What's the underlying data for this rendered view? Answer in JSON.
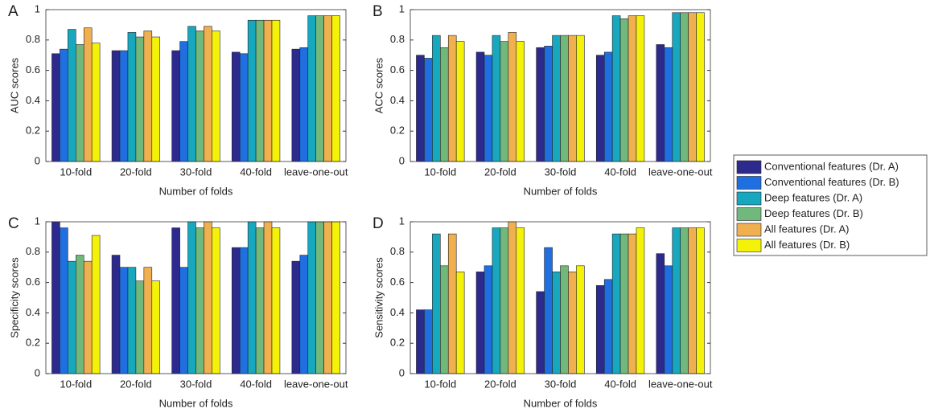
{
  "chart_data": [
    {
      "type": "bar",
      "label": "A",
      "xlabel": "Number of folds",
      "ylabel": "AUC scores",
      "categories": [
        "10-fold",
        "20-fold",
        "30-fold",
        "40-fold",
        "leave-one-out"
      ],
      "ylim": [
        0,
        1
      ],
      "yticks": [
        0,
        0.2,
        0.4,
        0.6,
        0.8,
        1
      ],
      "series": [
        {
          "name": "Conventional features (Dr. A)",
          "color": "#2d2a8e",
          "values": [
            0.71,
            0.73,
            0.73,
            0.72,
            0.74
          ]
        },
        {
          "name": "Conventional features (Dr. B)",
          "color": "#1f6fe0",
          "values": [
            0.74,
            0.73,
            0.79,
            0.71,
            0.75
          ]
        },
        {
          "name": "Deep features (Dr. A)",
          "color": "#17a8c0",
          "values": [
            0.87,
            0.85,
            0.89,
            0.93,
            0.96
          ]
        },
        {
          "name": "Deep features (Dr. B)",
          "color": "#70b87c",
          "values": [
            0.77,
            0.82,
            0.86,
            0.93,
            0.96
          ]
        },
        {
          "name": "All features (Dr. A)",
          "color": "#f0b050",
          "values": [
            0.88,
            0.86,
            0.89,
            0.93,
            0.96
          ]
        },
        {
          "name": "All features (Dr. B)",
          "color": "#f5f20a",
          "values": [
            0.78,
            0.82,
            0.86,
            0.93,
            0.96
          ]
        }
      ]
    },
    {
      "type": "bar",
      "label": "B",
      "xlabel": "Number of folds",
      "ylabel": "ACC scores",
      "categories": [
        "10-fold",
        "20-fold",
        "30-fold",
        "40-fold",
        "leave-one-out"
      ],
      "ylim": [
        0,
        1
      ],
      "yticks": [
        0,
        0.2,
        0.4,
        0.6,
        0.8,
        1
      ],
      "series": [
        {
          "values": [
            0.7,
            0.72,
            0.75,
            0.7,
            0.77
          ]
        },
        {
          "values": [
            0.68,
            0.7,
            0.76,
            0.72,
            0.75
          ]
        },
        {
          "values": [
            0.83,
            0.83,
            0.83,
            0.96,
            0.98
          ]
        },
        {
          "values": [
            0.75,
            0.79,
            0.83,
            0.94,
            0.98
          ]
        },
        {
          "values": [
            0.83,
            0.85,
            0.83,
            0.96,
            0.98
          ]
        },
        {
          "values": [
            0.79,
            0.79,
            0.83,
            0.96,
            0.98
          ]
        }
      ]
    },
    {
      "type": "bar",
      "label": "C",
      "xlabel": "Number of folds",
      "ylabel": "Specificity scores",
      "categories": [
        "10-fold",
        "20-fold",
        "30-fold",
        "40-fold",
        "leave-one-out"
      ],
      "ylim": [
        0,
        1
      ],
      "yticks": [
        0,
        0.2,
        0.4,
        0.6,
        0.8,
        1
      ],
      "series": [
        {
          "values": [
            1.0,
            0.78,
            0.96,
            0.83,
            0.74
          ]
        },
        {
          "values": [
            0.96,
            0.7,
            0.7,
            0.83,
            0.78
          ]
        },
        {
          "values": [
            0.74,
            0.7,
            1.0,
            1.0,
            1.0
          ]
        },
        {
          "values": [
            0.78,
            0.61,
            0.96,
            0.96,
            1.0
          ]
        },
        {
          "values": [
            0.74,
            0.7,
            1.0,
            1.0,
            1.0
          ]
        },
        {
          "values": [
            0.91,
            0.61,
            0.96,
            0.96,
            1.0
          ]
        }
      ]
    },
    {
      "type": "bar",
      "label": "D",
      "xlabel": "Number of folds",
      "ylabel": "Sensitivity scores",
      "categories": [
        "10-fold",
        "20-fold",
        "30-fold",
        "40-fold",
        "leave-one-out"
      ],
      "ylim": [
        0,
        1
      ],
      "yticks": [
        0,
        0.2,
        0.4,
        0.6,
        0.8,
        1
      ],
      "series": [
        {
          "values": [
            0.42,
            0.67,
            0.54,
            0.58,
            0.79
          ]
        },
        {
          "values": [
            0.42,
            0.71,
            0.83,
            0.62,
            0.71
          ]
        },
        {
          "values": [
            0.92,
            0.96,
            0.67,
            0.92,
            0.96
          ]
        },
        {
          "values": [
            0.71,
            0.96,
            0.71,
            0.92,
            0.96
          ]
        },
        {
          "values": [
            0.92,
            1.0,
            0.67,
            0.92,
            0.96
          ]
        },
        {
          "values": [
            0.67,
            0.96,
            0.71,
            0.96,
            0.96
          ]
        }
      ]
    }
  ]
}
